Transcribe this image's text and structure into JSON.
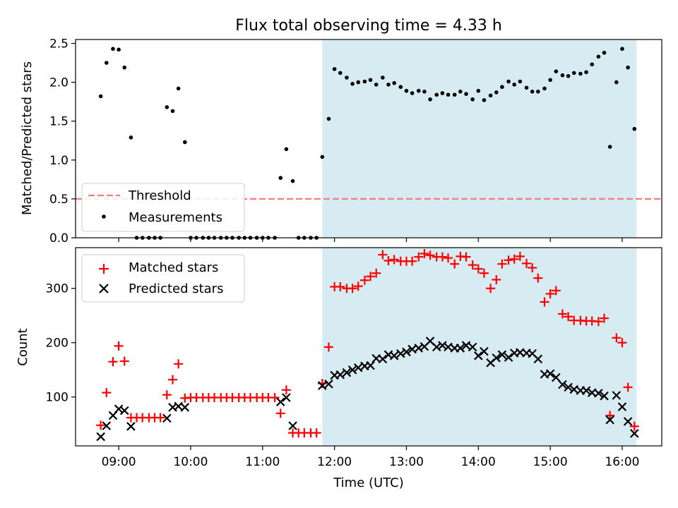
{
  "title": "Flux total observing time = 4.33 h",
  "colors": {
    "shade": "#add8e6",
    "threshold": "#f08080",
    "measurement": "#000000",
    "matched": "#ff0000",
    "predicted": "#000000"
  },
  "chart_data": [
    {
      "type": "scatter",
      "title": "Flux total observing time = 4.33 h",
      "ylabel": "Matched/Predicted stars",
      "xlabel": "",
      "x_unit": "hours (UTC)",
      "xlim": [
        8.4,
        16.55
      ],
      "ylim": [
        0,
        2.55
      ],
      "yticks": [
        0.0,
        0.5,
        1.0,
        1.5,
        2.0,
        2.5
      ],
      "ytick_labels": [
        "0.0",
        "0.5",
        "1.0",
        "1.5",
        "2.0",
        "2.5"
      ],
      "shaded_span": [
        11.83,
        16.2
      ],
      "threshold": 0.5,
      "legend": [
        "Threshold",
        "Measurements"
      ],
      "legend_loc": "lower left",
      "series": [
        {
          "name": "Measurements",
          "marker": "dot",
          "points": [
            [
              8.75,
              1.82
            ],
            [
              8.83,
              2.25
            ],
            [
              8.92,
              2.43
            ],
            [
              9.0,
              2.42
            ],
            [
              9.08,
              2.19
            ],
            [
              9.17,
              1.29
            ],
            [
              9.25,
              0
            ],
            [
              9.33,
              0
            ],
            [
              9.42,
              0
            ],
            [
              9.5,
              0
            ],
            [
              9.58,
              0
            ],
            [
              9.67,
              1.68
            ],
            [
              9.75,
              1.63
            ],
            [
              9.83,
              1.92
            ],
            [
              9.92,
              1.23
            ],
            [
              10.0,
              0
            ],
            [
              10.08,
              0
            ],
            [
              10.17,
              0
            ],
            [
              10.25,
              0
            ],
            [
              10.33,
              0
            ],
            [
              10.42,
              0
            ],
            [
              10.5,
              0
            ],
            [
              10.58,
              0
            ],
            [
              10.67,
              0
            ],
            [
              10.75,
              0
            ],
            [
              10.83,
              0
            ],
            [
              10.92,
              0
            ],
            [
              11.0,
              0
            ],
            [
              11.08,
              0
            ],
            [
              11.17,
              0
            ],
            [
              11.25,
              0.77
            ],
            [
              11.33,
              1.14
            ],
            [
              11.42,
              0.73
            ],
            [
              11.5,
              0
            ],
            [
              11.58,
              0
            ],
            [
              11.67,
              0
            ],
            [
              11.75,
              0
            ],
            [
              11.83,
              1.04
            ],
            [
              11.92,
              1.53
            ],
            [
              12.0,
              2.17
            ],
            [
              12.08,
              2.12
            ],
            [
              12.17,
              2.06
            ],
            [
              12.25,
              1.98
            ],
            [
              12.33,
              2.0
            ],
            [
              12.42,
              2.01
            ],
            [
              12.5,
              2.03
            ],
            [
              12.58,
              1.97
            ],
            [
              12.67,
              2.06
            ],
            [
              12.75,
              1.97
            ],
            [
              12.83,
              1.99
            ],
            [
              12.92,
              1.94
            ],
            [
              13.0,
              1.89
            ],
            [
              13.08,
              1.86
            ],
            [
              13.17,
              1.89
            ],
            [
              13.25,
              1.88
            ],
            [
              13.33,
              1.78
            ],
            [
              13.42,
              1.84
            ],
            [
              13.5,
              1.86
            ],
            [
              13.58,
              1.84
            ],
            [
              13.67,
              1.84
            ],
            [
              13.75,
              1.88
            ],
            [
              13.83,
              1.85
            ],
            [
              13.92,
              1.78
            ],
            [
              14.0,
              1.89
            ],
            [
              14.08,
              1.77
            ],
            [
              14.17,
              1.83
            ],
            [
              14.25,
              1.87
            ],
            [
              14.33,
              1.94
            ],
            [
              14.42,
              2.01
            ],
            [
              14.5,
              1.97
            ],
            [
              14.58,
              2.01
            ],
            [
              14.67,
              1.93
            ],
            [
              14.75,
              1.88
            ],
            [
              14.83,
              1.88
            ],
            [
              14.92,
              1.92
            ],
            [
              15.0,
              2.03
            ],
            [
              15.08,
              2.14
            ],
            [
              15.17,
              2.09
            ],
            [
              15.25,
              2.08
            ],
            [
              15.33,
              2.12
            ],
            [
              15.42,
              2.11
            ],
            [
              15.5,
              2.13
            ],
            [
              15.58,
              2.23
            ],
            [
              15.67,
              2.33
            ],
            [
              15.75,
              2.38
            ],
            [
              15.83,
              1.17
            ],
            [
              15.92,
              2.0
            ],
            [
              16.0,
              2.43
            ],
            [
              16.08,
              2.19
            ],
            [
              16.17,
              1.4
            ]
          ]
        }
      ]
    },
    {
      "type": "scatter",
      "title": "",
      "ylabel": "Count",
      "xlabel": "Time (UTC)",
      "x_unit": "hours (UTC)",
      "xlim": [
        8.4,
        16.55
      ],
      "ylim": [
        10,
        375
      ],
      "xticks": [
        9,
        10,
        11,
        12,
        13,
        14,
        15,
        16
      ],
      "xtick_labels": [
        "09:00",
        "10:00",
        "11:00",
        "12:00",
        "13:00",
        "14:00",
        "15:00",
        "16:00"
      ],
      "yticks": [
        100,
        200,
        300
      ],
      "ytick_labels": [
        "100",
        "200",
        "300"
      ],
      "shaded_span": [
        11.83,
        16.2
      ],
      "legend": [
        "Matched stars",
        "Predicted stars"
      ],
      "legend_loc": "upper left",
      "series": [
        {
          "name": "Matched stars",
          "marker": "plus",
          "points": [
            [
              8.75,
              48
            ],
            [
              8.83,
              108
            ],
            [
              8.92,
              165
            ],
            [
              9.0,
              194
            ],
            [
              9.08,
              166
            ],
            [
              9.17,
              62
            ],
            [
              9.25,
              62
            ],
            [
              9.33,
              62
            ],
            [
              9.42,
              62
            ],
            [
              9.5,
              62
            ],
            [
              9.58,
              62
            ],
            [
              9.67,
              104
            ],
            [
              9.75,
              132
            ],
            [
              9.83,
              161
            ],
            [
              9.92,
              98
            ],
            [
              10.0,
              99
            ],
            [
              10.08,
              99
            ],
            [
              10.17,
              99
            ],
            [
              10.25,
              99
            ],
            [
              10.33,
              99
            ],
            [
              10.42,
              99
            ],
            [
              10.5,
              99
            ],
            [
              10.58,
              99
            ],
            [
              10.67,
              99
            ],
            [
              10.75,
              99
            ],
            [
              10.83,
              99
            ],
            [
              10.92,
              99
            ],
            [
              11.0,
              99
            ],
            [
              11.08,
              99
            ],
            [
              11.17,
              99
            ],
            [
              11.25,
              70
            ],
            [
              11.33,
              113
            ],
            [
              11.42,
              34
            ],
            [
              11.5,
              34
            ],
            [
              11.58,
              34
            ],
            [
              11.67,
              34
            ],
            [
              11.75,
              34
            ],
            [
              11.83,
              125
            ],
            [
              11.92,
              192
            ],
            [
              12.0,
              303
            ],
            [
              12.08,
              303
            ],
            [
              12.17,
              300
            ],
            [
              12.25,
              300
            ],
            [
              12.33,
              304
            ],
            [
              12.42,
              315
            ],
            [
              12.5,
              322
            ],
            [
              12.58,
              328
            ],
            [
              12.67,
              362
            ],
            [
              12.75,
              351
            ],
            [
              12.83,
              353
            ],
            [
              12.92,
              350
            ],
            [
              13.0,
              350
            ],
            [
              13.08,
              350
            ],
            [
              13.17,
              358
            ],
            [
              13.25,
              364
            ],
            [
              13.33,
              361
            ],
            [
              13.42,
              358
            ],
            [
              13.5,
              358
            ],
            [
              13.58,
              356
            ],
            [
              13.67,
              345
            ],
            [
              13.75,
              359
            ],
            [
              13.83,
              358
            ],
            [
              13.92,
              343
            ],
            [
              14.0,
              336
            ],
            [
              14.08,
              328
            ],
            [
              14.17,
              300
            ],
            [
              14.25,
              316
            ],
            [
              14.33,
              345
            ],
            [
              14.42,
              352
            ],
            [
              14.5,
              354
            ],
            [
              14.58,
              359
            ],
            [
              14.67,
              346
            ],
            [
              14.75,
              338
            ],
            [
              14.83,
              319
            ],
            [
              14.92,
              275
            ],
            [
              15.0,
              290
            ],
            [
              15.08,
              296
            ],
            [
              15.17,
              253
            ],
            [
              15.25,
              248
            ],
            [
              15.33,
              241
            ],
            [
              15.42,
              241
            ],
            [
              15.5,
              240
            ],
            [
              15.58,
              240
            ],
            [
              15.67,
              239
            ],
            [
              15.75,
              245
            ],
            [
              15.83,
              66
            ],
            [
              15.92,
              209
            ],
            [
              16.0,
              200
            ],
            [
              16.08,
              118
            ],
            [
              16.17,
              46
            ]
          ]
        },
        {
          "name": "Predicted stars",
          "marker": "x",
          "points": [
            [
              8.75,
              27
            ],
            [
              8.83,
              47
            ],
            [
              8.92,
              66
            ],
            [
              9.0,
              78
            ],
            [
              9.08,
              75
            ],
            [
              9.17,
              46
            ],
            [
              9.67,
              61
            ],
            [
              9.75,
              81
            ],
            [
              9.83,
              83
            ],
            [
              9.92,
              81
            ],
            [
              11.25,
              91
            ],
            [
              11.33,
              99
            ],
            [
              11.42,
              47
            ],
            [
              11.83,
              121
            ],
            [
              11.92,
              124
            ],
            [
              12.0,
              140
            ],
            [
              12.08,
              141
            ],
            [
              12.17,
              145
            ],
            [
              12.25,
              150
            ],
            [
              12.33,
              154
            ],
            [
              12.42,
              157
            ],
            [
              12.5,
              158
            ],
            [
              12.58,
              171
            ],
            [
              12.67,
              170
            ],
            [
              12.75,
              178
            ],
            [
              12.83,
              176
            ],
            [
              12.92,
              180
            ],
            [
              13.0,
              183
            ],
            [
              13.08,
              188
            ],
            [
              13.17,
              190
            ],
            [
              13.25,
              193
            ],
            [
              13.33,
              203
            ],
            [
              13.42,
              192
            ],
            [
              13.5,
              195
            ],
            [
              13.58,
              192
            ],
            [
              13.67,
              190
            ],
            [
              13.75,
              190
            ],
            [
              13.83,
              195
            ],
            [
              13.92,
              192
            ],
            [
              14.0,
              176
            ],
            [
              14.08,
              184
            ],
            [
              14.17,
              163
            ],
            [
              14.25,
              172
            ],
            [
              14.33,
              178
            ],
            [
              14.42,
              173
            ],
            [
              14.5,
              181
            ],
            [
              14.58,
              182
            ],
            [
              14.67,
              181
            ],
            [
              14.75,
              180
            ],
            [
              14.83,
              170
            ],
            [
              14.92,
              142
            ],
            [
              15.0,
              143
            ],
            [
              15.08,
              136
            ],
            [
              15.17,
              123
            ],
            [
              15.25,
              118
            ],
            [
              15.33,
              114
            ],
            [
              15.42,
              112
            ],
            [
              15.5,
              112
            ],
            [
              15.58,
              108
            ],
            [
              15.67,
              107
            ],
            [
              15.75,
              102
            ],
            [
              15.83,
              58
            ],
            [
              15.92,
              103
            ],
            [
              16.0,
              82
            ],
            [
              16.08,
              55
            ],
            [
              16.17,
              33
            ]
          ]
        }
      ]
    }
  ]
}
